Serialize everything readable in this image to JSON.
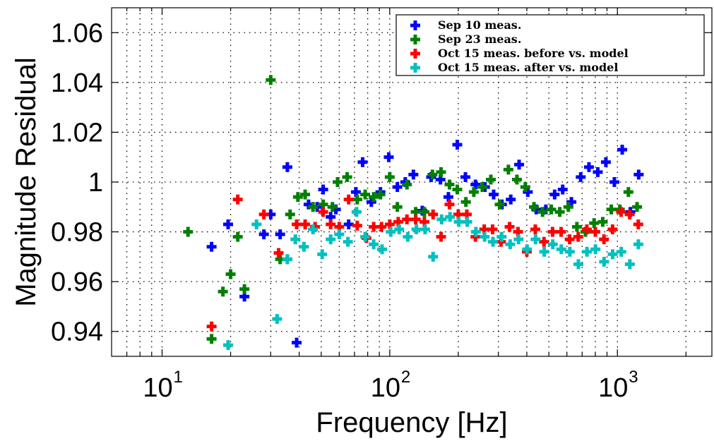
{
  "chart_data": {
    "type": "scatter",
    "title": "",
    "xlabel": "Frequency [Hz]",
    "ylabel": "Magnitude Residual",
    "xscale": "log",
    "xlim": [
      6,
      2600
    ],
    "ylim": [
      0.93,
      1.07
    ],
    "x_ticks": [
      {
        "base": "10",
        "exp": "1",
        "value": 10
      },
      {
        "base": "10",
        "exp": "2",
        "value": 100
      },
      {
        "base": "10",
        "exp": "3",
        "value": 1000
      }
    ],
    "y_ticks": [
      "0.94",
      "0.96",
      "0.98",
      "1",
      "1.02",
      "1.04",
      "1.06"
    ],
    "grid": true,
    "legend_position": "top-right",
    "series": [
      {
        "name": "Sep 10 meas.",
        "color": "#0000ff",
        "points": [
          [
            16.5,
            0.974
          ],
          [
            19.5,
            0.983
          ],
          [
            23,
            0.954
          ],
          [
            28,
            0.979
          ],
          [
            30,
            0.987
          ],
          [
            33,
            0.979
          ],
          [
            35.5,
            1.006
          ],
          [
            39,
            0.9355
          ],
          [
            44,
            0.991
          ],
          [
            48,
            0.99
          ],
          [
            51,
            0.997
          ],
          [
            55,
            0.986
          ],
          [
            58,
            0.989
          ],
          [
            66,
            0.983
          ],
          [
            71,
            0.996
          ],
          [
            76,
            1.008
          ],
          [
            83,
            0.992
          ],
          [
            91,
            0.996
          ],
          [
            99,
            1.01
          ],
          [
            108,
            0.998
          ],
          [
            117,
            1.0
          ],
          [
            127,
            1.003
          ],
          [
            139,
            0.9885
          ],
          [
            152,
            1.002
          ],
          [
            167,
            1.001
          ],
          [
            181,
            0.994
          ],
          [
            198,
            1.015
          ],
          [
            215,
            1.002
          ],
          [
            238,
            0.999
          ],
          [
            262,
            0.998
          ],
          [
            286,
            0.995
          ],
          [
            311,
            0.991
          ],
          [
            340,
            0.993
          ],
          [
            370,
            1.007
          ],
          [
            404,
            0.996
          ],
          [
            440,
            0.989
          ],
          [
            485,
            0.989
          ],
          [
            530,
            0.995
          ],
          [
            575,
            0.997
          ],
          [
            628,
            0.992
          ],
          [
            690,
            1.002
          ],
          [
            750,
            1.006
          ],
          [
            820,
            1.004
          ],
          [
            890,
            1.008
          ],
          [
            970,
            1.0
          ],
          [
            1050,
            1.013
          ],
          [
            1140,
            0.988
          ],
          [
            1240,
            1.003
          ]
        ]
      },
      {
        "name": "Sep 23 meas.",
        "color": "#008000",
        "points": [
          [
            13,
            0.98
          ],
          [
            16.5,
            0.937
          ],
          [
            18.5,
            0.956
          ],
          [
            20,
            0.963
          ],
          [
            21.5,
            0.978
          ],
          [
            23,
            0.957
          ],
          [
            30,
            1.041
          ],
          [
            33,
            0.969
          ],
          [
            35.5,
            0.969
          ],
          [
            36.5,
            0.987
          ],
          [
            39.5,
            0.994
          ],
          [
            42.5,
            0.995
          ],
          [
            46,
            0.99
          ],
          [
            51,
            0.991
          ],
          [
            56,
            0.99
          ],
          [
            59,
            1.0
          ],
          [
            65,
            1.002
          ],
          [
            72,
            0.993
          ],
          [
            78,
            0.995
          ],
          [
            85,
            0.994
          ],
          [
            91,
            0.995
          ],
          [
            100,
            1.002
          ],
          [
            108,
            0.99
          ],
          [
            119,
            0.999
          ],
          [
            130,
            0.988
          ],
          [
            142,
            0.988
          ],
          [
            154,
            1.003
          ],
          [
            168,
            1.004
          ],
          [
            183,
            0.999
          ],
          [
            198,
            0.997
          ],
          [
            216,
            0.992
          ],
          [
            234,
            0.996
          ],
          [
            255,
            0.998
          ],
          [
            278,
            1.001
          ],
          [
            304,
            0.991
          ],
          [
            332,
            1.005
          ],
          [
            362,
            1.001
          ],
          [
            394,
            0.998
          ],
          [
            430,
            0.99
          ],
          [
            469,
            0.988
          ],
          [
            512,
            0.989
          ],
          [
            558,
            0.988
          ],
          [
            609,
            0.99
          ],
          [
            664,
            0.982
          ],
          [
            724,
            0.98
          ],
          [
            790,
            0.9835
          ],
          [
            862,
            0.984
          ],
          [
            940,
            0.989
          ],
          [
            1025,
            0.989
          ],
          [
            1118,
            0.996
          ],
          [
            1220,
            0.99
          ]
        ]
      },
      {
        "name": "Oct 15 meas. before vs. model",
        "color": "#ff0000",
        "points": [
          [
            16.5,
            0.942
          ],
          [
            21.5,
            0.993
          ],
          [
            28,
            0.987
          ],
          [
            32.5,
            0.9715
          ],
          [
            39,
            0.983
          ],
          [
            42.5,
            0.983
          ],
          [
            47,
            0.982
          ],
          [
            51,
            0.988
          ],
          [
            55,
            0.983
          ],
          [
            60,
            0.982
          ],
          [
            66,
            0.993
          ],
          [
            72,
            0.9825
          ],
          [
            79,
            0.9775
          ],
          [
            85,
            0.982
          ],
          [
            92,
            0.982
          ],
          [
            100,
            0.983
          ],
          [
            109,
            0.984
          ],
          [
            119,
            0.985
          ],
          [
            130,
            0.985
          ],
          [
            142,
            0.984
          ],
          [
            155,
            0.987
          ],
          [
            168,
            0.978
          ],
          [
            183,
            0.991
          ],
          [
            200,
            0.987
          ],
          [
            218,
            0.987
          ],
          [
            238,
            0.978
          ],
          [
            260,
            0.981
          ],
          [
            283,
            0.981
          ],
          [
            308,
            0.976
          ],
          [
            336,
            0.982
          ],
          [
            366,
            0.98
          ],
          [
            400,
            0.972
          ],
          [
            436,
            0.981
          ],
          [
            476,
            0.976
          ],
          [
            519,
            0.98
          ],
          [
            566,
            0.98
          ],
          [
            617,
            0.977
          ],
          [
            673,
            0.978
          ],
          [
            734,
            0.981
          ],
          [
            800,
            0.98
          ],
          [
            873,
            0.977
          ],
          [
            952,
            0.981
          ],
          [
            1038,
            0.988
          ],
          [
            1132,
            0.987
          ],
          [
            1235,
            0.983
          ]
        ]
      },
      {
        "name": "Oct 15 meas. after vs. model",
        "color": "#00c0c0",
        "points": [
          [
            19.5,
            0.9345
          ],
          [
            26,
            0.983
          ],
          [
            32,
            0.945
          ],
          [
            35.5,
            0.969
          ],
          [
            38.5,
            0.977
          ],
          [
            42,
            0.974
          ],
          [
            46,
            0.981
          ],
          [
            50.5,
            0.971
          ],
          [
            55,
            0.977
          ],
          [
            60,
            0.979
          ],
          [
            65.5,
            0.976
          ],
          [
            71.5,
            0.988
          ],
          [
            78,
            0.978
          ],
          [
            85,
            0.975
          ],
          [
            92.5,
            0.973
          ],
          [
            101,
            0.98
          ],
          [
            110,
            0.981
          ],
          [
            120,
            0.978
          ],
          [
            131,
            0.981
          ],
          [
            143,
            0.981
          ],
          [
            155,
            0.97
          ],
          [
            169,
            0.985
          ],
          [
            184,
            0.986
          ],
          [
            201,
            0.984
          ],
          [
            219,
            0.984
          ],
          [
            239,
            0.98
          ],
          [
            261,
            0.978
          ],
          [
            284,
            0.976
          ],
          [
            310,
            0.978
          ],
          [
            338,
            0.975
          ],
          [
            368,
            0.977
          ],
          [
            401,
            0.973
          ],
          [
            437,
            0.977
          ],
          [
            477,
            0.972
          ],
          [
            520,
            0.975
          ],
          [
            567,
            0.973
          ],
          [
            618,
            0.972
          ],
          [
            674,
            0.967
          ],
          [
            735,
            0.972
          ],
          [
            801,
            0.973
          ],
          [
            874,
            0.968
          ],
          [
            953,
            0.971
          ],
          [
            1040,
            0.972
          ],
          [
            1134,
            0.967
          ],
          [
            1236,
            0.975
          ]
        ]
      }
    ]
  }
}
